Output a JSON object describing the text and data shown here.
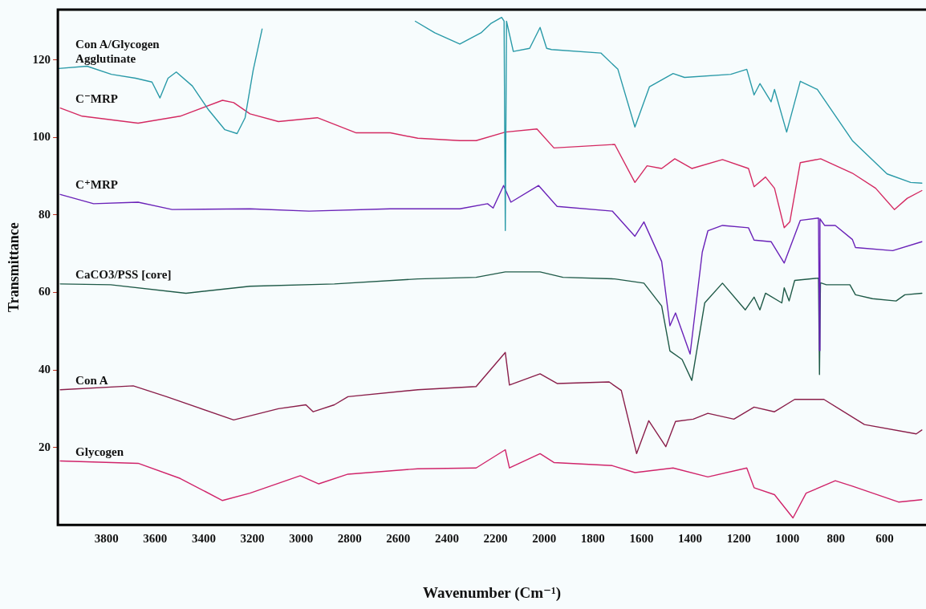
{
  "chart_data": {
    "type": "line",
    "xlabel": "Wavenumber (Cm⁻¹)",
    "ylabel": "Transmittance",
    "xlim": [
      4000,
      430
    ],
    "ylim": [
      0,
      133
    ],
    "xticks": [
      3800,
      3600,
      3400,
      3200,
      3000,
      2800,
      2600,
      2400,
      2200,
      2000,
      1800,
      1600,
      1400,
      1200,
      1000,
      800,
      600
    ],
    "yticks": [
      20,
      40,
      60,
      80,
      100,
      120
    ],
    "grid": false,
    "legend": false,
    "marker": "none",
    "line_style": "solid",
    "series": [
      {
        "name": "Con A/Glycogen Agglutinate",
        "color": "#2a9aa8",
        "x": [
          3997,
          3880,
          3780,
          3680,
          3613,
          3580,
          3547,
          3513,
          3447,
          3380,
          3313,
          3263,
          3230,
          3197,
          3160,
          3000,
          2530,
          2450,
          2347,
          2260,
          2220,
          2175,
          2165,
          2160,
          2155,
          2127,
          2060,
          2017,
          1990,
          1970,
          1767,
          1697,
          1627,
          1567,
          1470,
          1423,
          1233,
          1167,
          1137,
          1113,
          1067,
          1053,
          1003,
          947,
          877,
          733,
          590,
          493,
          447
        ],
        "values": [
          117.8,
          118.4,
          116.3,
          115.3,
          114.3,
          110.2,
          115.3,
          116.9,
          113.3,
          107.1,
          102.0,
          101.0,
          105.1,
          117.3,
          128,
          null,
          130,
          127,
          124.1,
          127,
          129.4,
          131,
          130,
          76,
          130,
          122.2,
          123,
          128.4,
          123,
          122.7,
          121.8,
          117.6,
          102.7,
          113.1,
          116.5,
          115.5,
          116.3,
          117.6,
          111.0,
          113.9,
          109.2,
          112.4,
          101.4,
          114.5,
          112.4,
          99.2,
          90.6,
          88.4,
          88.2
        ]
      },
      {
        "name": "C⁻MRP",
        "color": "#d42a62",
        "x": [
          3990,
          3900,
          3670,
          3497,
          3323,
          3277,
          3210,
          3093,
          2933,
          2773,
          2633,
          2520,
          2347,
          2280,
          2160,
          2030,
          1960,
          1710,
          1627,
          1577,
          1517,
          1463,
          1393,
          1267,
          1160,
          1137,
          1090,
          1053,
          1013,
          990,
          947,
          863,
          733,
          637,
          560,
          507,
          447
        ],
        "values": [
          107.6,
          105.5,
          103.7,
          105.5,
          109.6,
          109,
          106.1,
          104.1,
          105.1,
          101.2,
          101.2,
          99.8,
          99.2,
          99.2,
          101.4,
          102.2,
          97.3,
          98.2,
          88.4,
          92.7,
          92.0,
          94.5,
          92.0,
          94.3,
          92.0,
          87.3,
          89.8,
          86.9,
          76.7,
          78.2,
          93.5,
          94.5,
          90.8,
          86.9,
          81.4,
          84.3,
          86.3
        ]
      },
      {
        "name": "C⁺MRP",
        "color": "#6a22b8",
        "x": [
          3990,
          3853,
          3670,
          3530,
          3210,
          2967,
          2633,
          2347,
          2233,
          2210,
          2167,
          2137,
          2023,
          1947,
          1720,
          1627,
          1590,
          1517,
          1483,
          1460,
          1400,
          1350,
          1327,
          1267,
          1160,
          1137,
          1067,
          1013,
          947,
          872,
          868,
          866,
          847,
          803,
          733,
          720,
          567,
          447
        ],
        "values": [
          85.3,
          82.9,
          83.3,
          81.4,
          81.6,
          81.0,
          81.6,
          81.6,
          82.9,
          81.8,
          87.6,
          83.3,
          87.6,
          82.2,
          81.0,
          74.5,
          78.2,
          68.0,
          51.4,
          54.7,
          44.1,
          70.4,
          75.9,
          77.3,
          76.7,
          73.5,
          73.1,
          67.6,
          78.6,
          79.2,
          45,
          79,
          77.3,
          77.3,
          73.7,
          71.6,
          70.8,
          73.1
        ]
      },
      {
        "name": "CaCO3/PSS [core]",
        "color": "#1f5a48",
        "x": [
          3990,
          3783,
          3473,
          3210,
          2863,
          2520,
          2280,
          2160,
          2017,
          1923,
          1710,
          1590,
          1517,
          1483,
          1433,
          1393,
          1340,
          1267,
          1173,
          1137,
          1113,
          1090,
          1023,
          1013,
          993,
          970,
          872,
          868,
          864,
          840,
          743,
          720,
          650,
          553,
          517,
          447
        ],
        "values": [
          62.2,
          62.0,
          59.8,
          61.6,
          62.2,
          63.5,
          63.9,
          65.3,
          65.3,
          63.9,
          63.5,
          62.4,
          56.5,
          44.9,
          42.7,
          37.3,
          57.3,
          62.4,
          55.5,
          58.8,
          55.5,
          59.8,
          57.3,
          61.2,
          57.8,
          63.1,
          63.7,
          38.8,
          62.5,
          62.0,
          62.0,
          59.4,
          58.4,
          57.8,
          59.4,
          59.8
        ]
      },
      {
        "name": "Con A",
        "color": "#8a1e4a",
        "x": [
          3990,
          3690,
          3553,
          3277,
          3093,
          2980,
          2950,
          2863,
          2807,
          2520,
          2280,
          2160,
          2143,
          2017,
          1947,
          1733,
          1683,
          1620,
          1570,
          1500,
          1460,
          1387,
          1327,
          1220,
          1137,
          1053,
          970,
          850,
          683,
          470,
          447
        ],
        "values": [
          34.9,
          35.9,
          33.1,
          27.1,
          30.0,
          31.0,
          29.2,
          31.0,
          33.1,
          34.9,
          35.7,
          44.5,
          36.1,
          39.0,
          36.5,
          36.9,
          34.7,
          18.4,
          26.9,
          20.2,
          26.7,
          27.3,
          28.8,
          27.3,
          30.4,
          29.2,
          32.4,
          32.4,
          25.9,
          23.5,
          24.5
        ]
      },
      {
        "name": "Glycogen",
        "color": "#d0246a",
        "x": [
          3990,
          3670,
          3497,
          3323,
          3210,
          3003,
          2927,
          2807,
          2520,
          2280,
          2160,
          2143,
          2017,
          1960,
          1720,
          1627,
          1470,
          1327,
          1167,
          1137,
          1053,
          977,
          923,
          803,
          733,
          543,
          447
        ],
        "values": [
          16.5,
          15.9,
          12.0,
          6.3,
          8.2,
          12.7,
          10.6,
          13.1,
          14.5,
          14.7,
          19.4,
          14.7,
          18.4,
          16.1,
          15.3,
          13.5,
          14.7,
          12.4,
          14.7,
          9.6,
          7.8,
          1.8,
          8.2,
          11.4,
          10.0,
          5.9,
          6.5
        ]
      }
    ]
  }
}
